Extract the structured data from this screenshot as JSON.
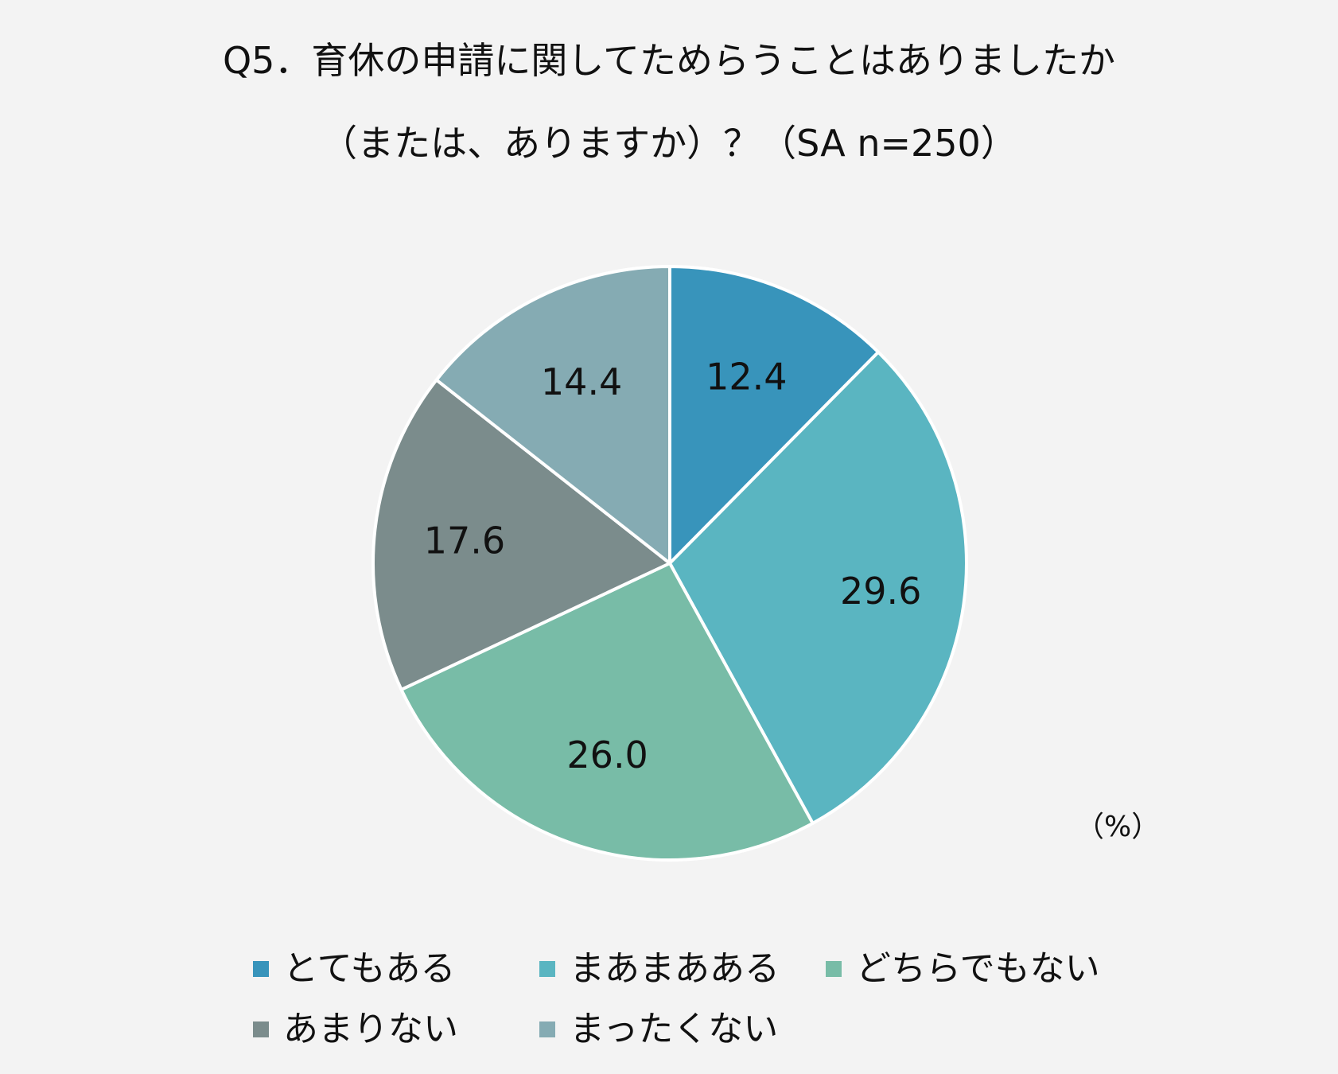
{
  "chart_data": {
    "type": "pie",
    "title_line1": "Q5．育休の申請に関してためらうことはありましたか",
    "title_line2": "（または、ありますか）？（SA n=250）",
    "unit": "（%）",
    "slices": [
      {
        "label": "とてもある",
        "value": 12.4,
        "value_label": "12.4",
        "color": "#3894bb"
      },
      {
        "label": "まあまあある",
        "value": 29.6,
        "value_label": "29.6",
        "color": "#5ab5c1"
      },
      {
        "label": "どちらでもない",
        "value": 26.0,
        "value_label": "26.0",
        "color": "#78bca7"
      },
      {
        "label": "あまりない",
        "value": 17.6,
        "value_label": "17.6",
        "color": "#7b8c8c"
      },
      {
        "label": "まったくない",
        "value": 14.4,
        "value_label": "14.4",
        "color": "#85abb3"
      }
    ],
    "start_angle": "12 o'clock",
    "direction": "clockwise",
    "legend_position": "bottom"
  }
}
